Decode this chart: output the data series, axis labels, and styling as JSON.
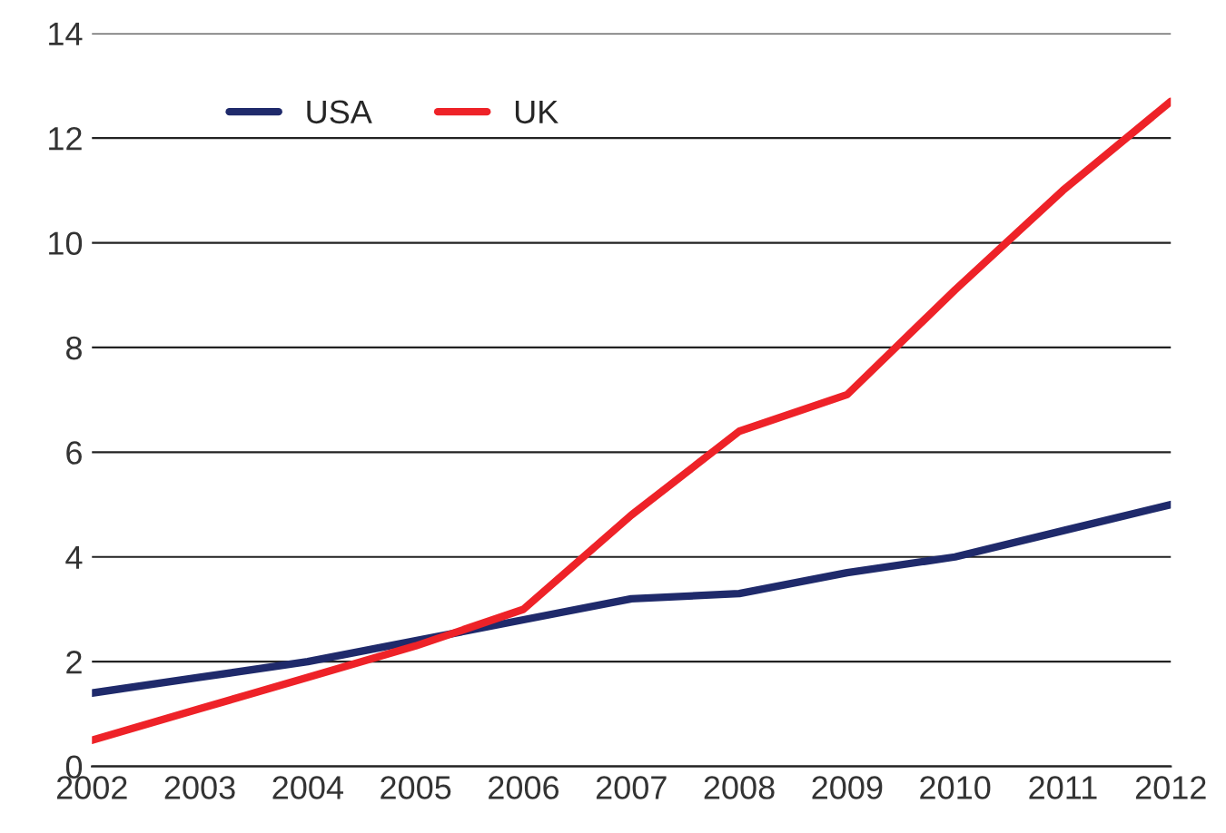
{
  "chart_data": {
    "type": "line",
    "categories": [
      "2002",
      "2003",
      "2004",
      "2005",
      "2006",
      "2007",
      "2008",
      "2009",
      "2010",
      "2011",
      "2012"
    ],
    "series": [
      {
        "name": "USA",
        "color": "#1f2a6b",
        "values": [
          1.4,
          1.7,
          2.0,
          2.4,
          2.8,
          3.2,
          3.3,
          3.7,
          4.0,
          4.5,
          5.0
        ]
      },
      {
        "name": "UK",
        "color": "#ee2228",
        "values": [
          0.5,
          1.1,
          1.7,
          2.3,
          3.0,
          4.8,
          6.4,
          7.1,
          9.1,
          11.0,
          12.7
        ]
      }
    ],
    "ylim": [
      0,
      14
    ],
    "yticks": [
      0,
      2,
      4,
      6,
      8,
      10,
      12,
      14
    ],
    "grid": "y",
    "legend": "top left",
    "marker": "none",
    "line_style": "solid"
  }
}
